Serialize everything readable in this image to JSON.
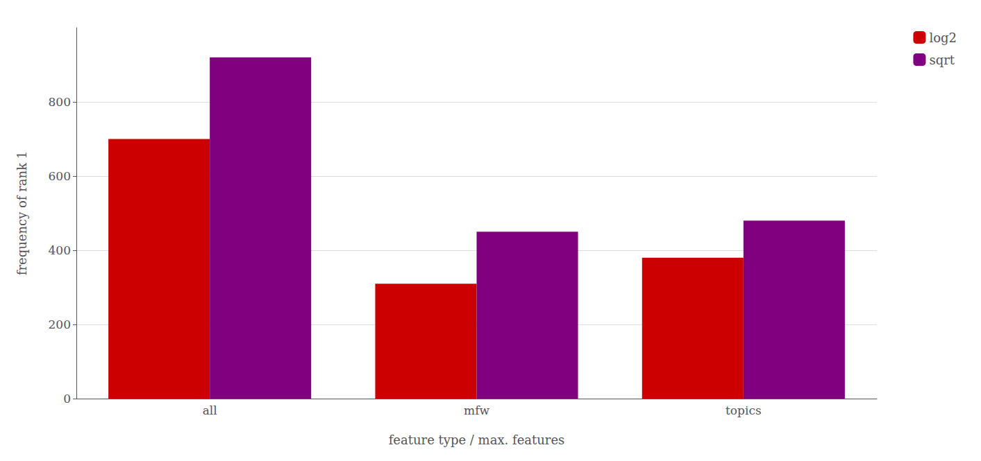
{
  "chart_data": {
    "type": "bar",
    "categories": [
      "all",
      "mfw",
      "topics"
    ],
    "series": [
      {
        "name": "log2",
        "color": "#cc0000",
        "values": [
          700,
          310,
          380
        ]
      },
      {
        "name": "sqrt",
        "color": "#800080",
        "values": [
          920,
          450,
          480
        ]
      }
    ],
    "xlabel": "feature type / max. features",
    "ylabel": "frequency of rank 1",
    "ylim": [
      0,
      1000
    ],
    "yticks": [
      0,
      200,
      400,
      600,
      800
    ],
    "grid": true,
    "legend": "right"
  }
}
